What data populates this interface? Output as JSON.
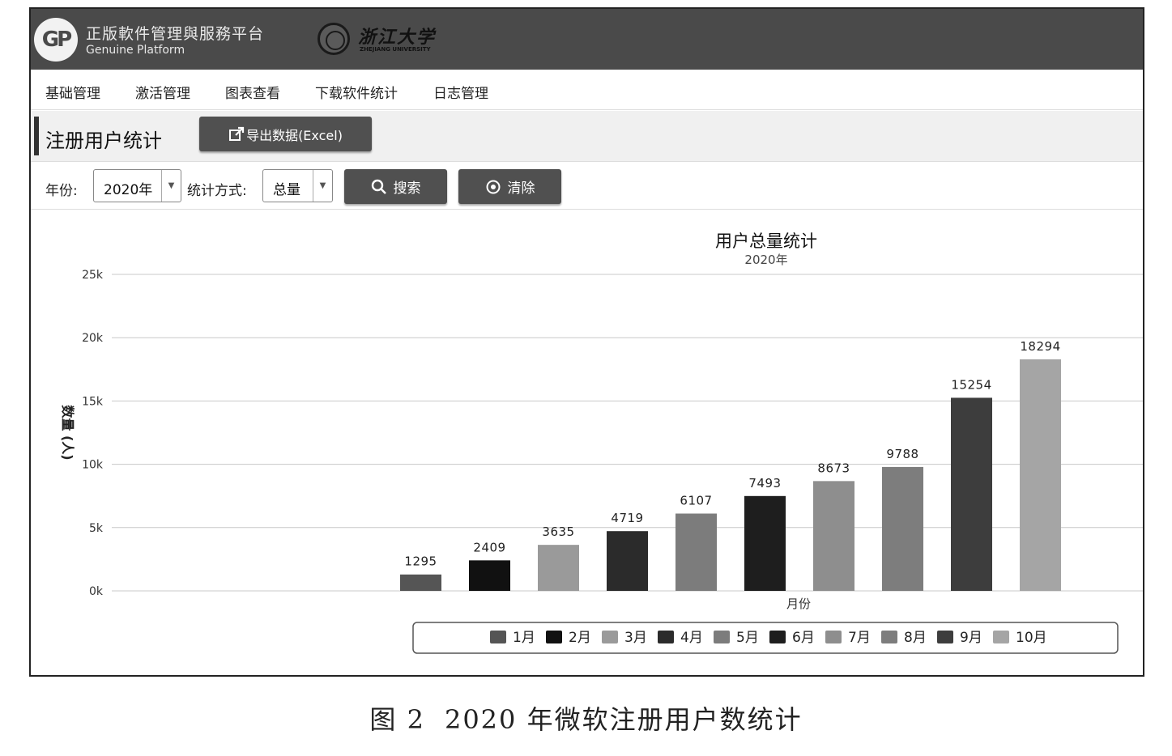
{
  "header": {
    "platform_name_cn": "正版軟件管理與服務平台",
    "platform_name_en": "Genuine Platform",
    "university_name": "浙江大学",
    "university_name_en": "ZHEJIANG UNIVERSITY"
  },
  "nav": {
    "items": [
      "基础管理",
      "激活管理",
      "图表查看",
      "下载软件统计",
      "日志管理"
    ]
  },
  "page": {
    "title": "注册用户统计",
    "export_label": "导出数据(Excel)"
  },
  "filters": {
    "year_label": "年份:",
    "year_value": "2020年",
    "method_label": "统计方式:",
    "method_value": "总量",
    "search_label": "搜索",
    "clear_label": "清除"
  },
  "colors": {
    "header_bg": "#4a4a4a",
    "button_bg": "#505050"
  },
  "icons": {
    "export": "external-link-icon",
    "search": "magnifier-icon",
    "clear": "circle-x-icon",
    "dropdown": "chevron-down-icon"
  },
  "chart_data": {
    "type": "bar",
    "title": "用户总量统计",
    "subtitle": "2020年",
    "xlabel": "月份",
    "ylabel": "数量 (人)",
    "ylim": [
      0,
      25000
    ],
    "y_ticks": [
      "0k",
      "5k",
      "10k",
      "15k",
      "20k",
      "25k"
    ],
    "grid": true,
    "legend_position": "bottom",
    "categories": [
      "1月",
      "2月",
      "3月",
      "4月",
      "5月",
      "6月",
      "7月",
      "8月",
      "9月",
      "10月"
    ],
    "values": [
      1295,
      2409,
      3635,
      4719,
      6107,
      7493,
      8673,
      9788,
      15254,
      18294
    ],
    "colors": [
      "#555555",
      "#111111",
      "#9a9a9a",
      "#2b2b2b",
      "#7c7c7c",
      "#1e1e1e",
      "#8e8e8e",
      "#7d7d7d",
      "#3d3d3d",
      "#a5a5a5"
    ]
  },
  "caption": {
    "figure_number": "图 2",
    "text": "2020 年微软注册用户数统计"
  }
}
